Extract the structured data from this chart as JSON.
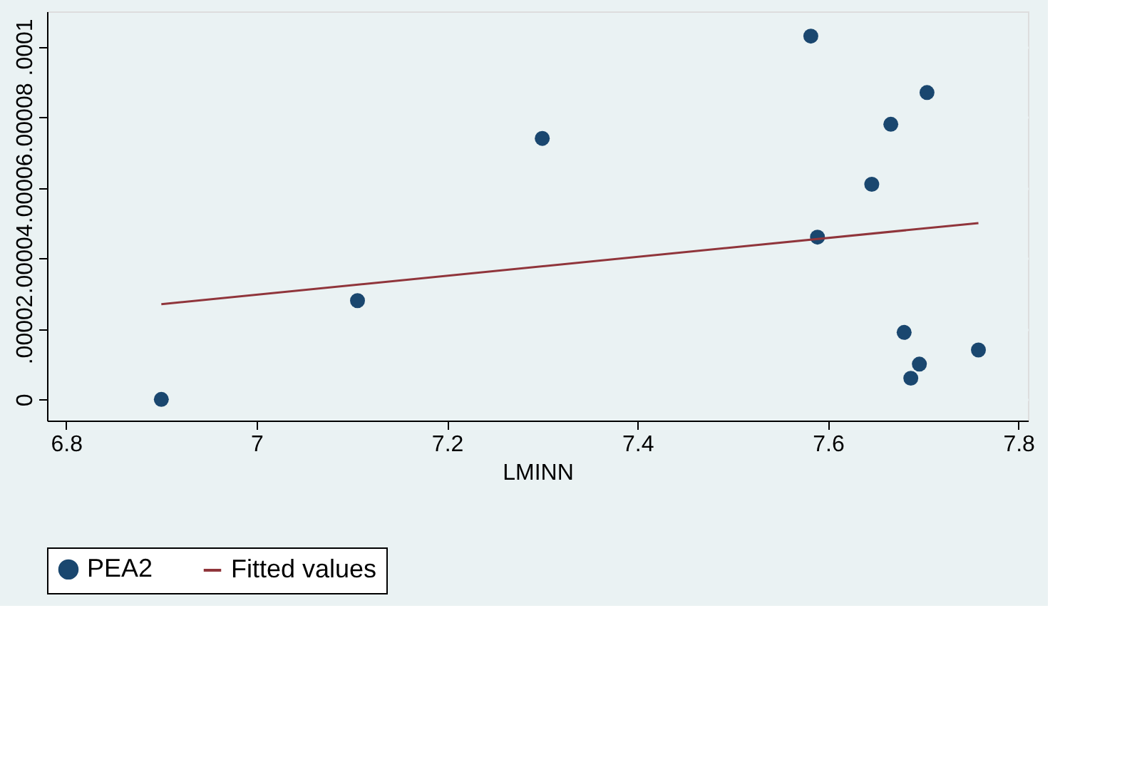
{
  "chart_data": {
    "type": "scatter",
    "xlabel": "LMINN",
    "xlim": [
      6.78,
      7.81
    ],
    "xticks": [
      6.8,
      7,
      7.2,
      7.4,
      7.6,
      7.8
    ],
    "ylim": [
      -6e-06,
      0.00011
    ],
    "yticks": [
      {
        "value": 0,
        "label": "0"
      },
      {
        "value": 2e-05,
        "label": ".00002"
      },
      {
        "value": 4e-05,
        "label": ".00004"
      },
      {
        "value": 6e-05,
        "label": ".00006"
      },
      {
        "value": 8e-05,
        "label": ".00008"
      },
      {
        "value": 0.0001,
        "label": ".0001"
      }
    ],
    "grid": "y",
    "legend": "bottom",
    "series": [
      {
        "name": "PEA2",
        "marker": "circle",
        "color": "#1a476f",
        "x": [
          6.9,
          7.106,
          7.3,
          7.582,
          7.589,
          7.646,
          7.666,
          7.704,
          7.68,
          7.696,
          7.687,
          7.758
        ],
        "values": [
          0.0,
          2.8e-05,
          7.4e-05,
          0.000103,
          4.6e-05,
          6.1e-05,
          7.8e-05,
          8.7e-05,
          1.9e-05,
          1e-05,
          6e-06,
          1.4e-05
        ]
      },
      {
        "name": "Fitted values",
        "type": "line",
        "color": "#90353b",
        "x": [
          6.9,
          7.758
        ],
        "values": [
          2.7e-05,
          5e-05
        ]
      }
    ]
  }
}
